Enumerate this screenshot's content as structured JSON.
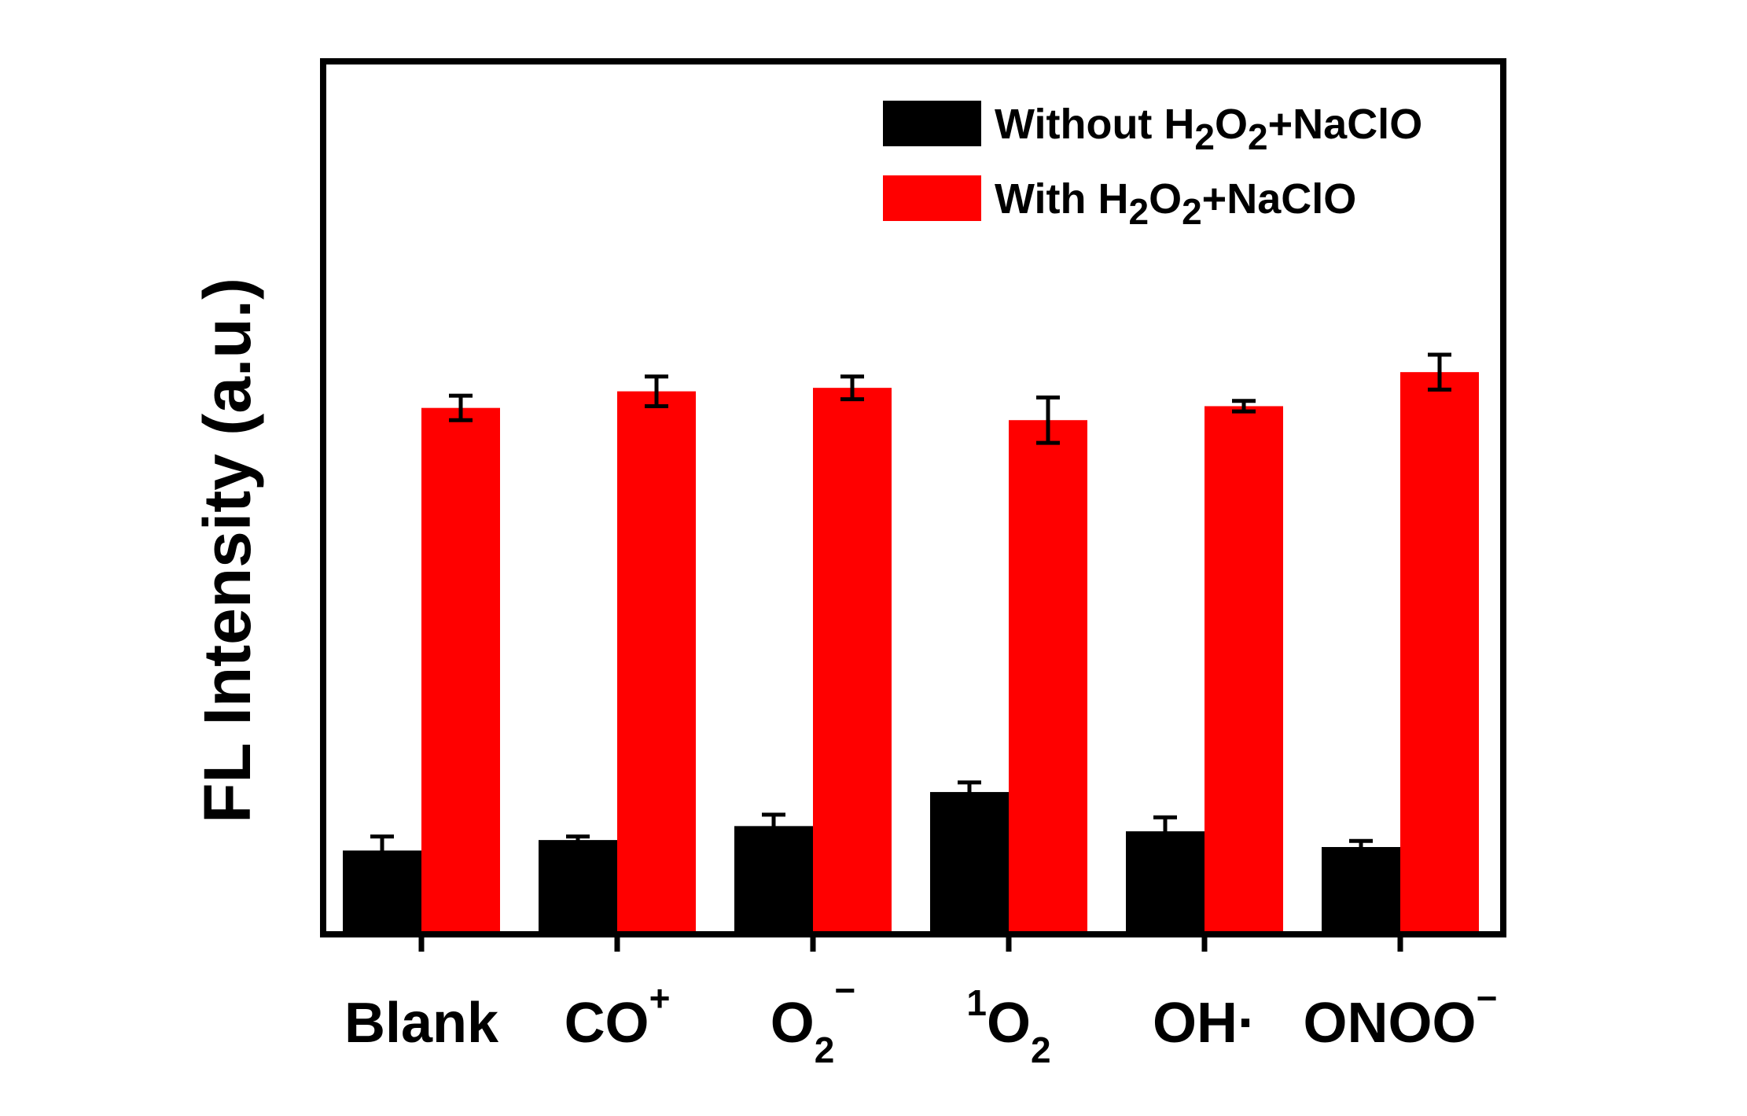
{
  "chart_data": {
    "type": "bar",
    "ylabel": "FL Intensity (a.u.)",
    "xlabel": "",
    "title": "",
    "ylim": [
      0,
      100
    ],
    "grid": false,
    "legend_position": "top-right",
    "categories": [
      {
        "base": "Blank",
        "pre_sup": "",
        "sub": "",
        "sup": ""
      },
      {
        "base": "CO",
        "pre_sup": "",
        "sub": "",
        "sup": "+"
      },
      {
        "base": "O",
        "pre_sup": "",
        "sub": "2",
        "sup": "−"
      },
      {
        "base": "O",
        "pre_sup": "1",
        "sub": "2",
        "sup": ""
      },
      {
        "base": "OH·",
        "pre_sup": "",
        "sub": "",
        "sup": ""
      },
      {
        "base": "ONOO",
        "pre_sup": "",
        "sub": "",
        "sup": "−"
      }
    ],
    "series": [
      {
        "name_parts": [
          "Without H",
          "2",
          "O",
          "2",
          "+NaClO"
        ],
        "color": "#000000",
        "values": [
          9.6,
          10.8,
          12.4,
          16.3,
          11.8,
          10.0
        ],
        "errors": [
          1.6,
          0.4,
          1.3,
          1.1,
          1.6,
          0.7
        ]
      },
      {
        "name_parts": [
          "With H",
          "2",
          "O",
          "2",
          "+NaClO"
        ],
        "color": "#ff0000",
        "values": [
          60.3,
          62.2,
          62.6,
          58.9,
          60.5,
          64.4
        ],
        "errors": [
          1.4,
          1.7,
          1.3,
          2.6,
          0.6,
          2.0
        ]
      }
    ]
  }
}
